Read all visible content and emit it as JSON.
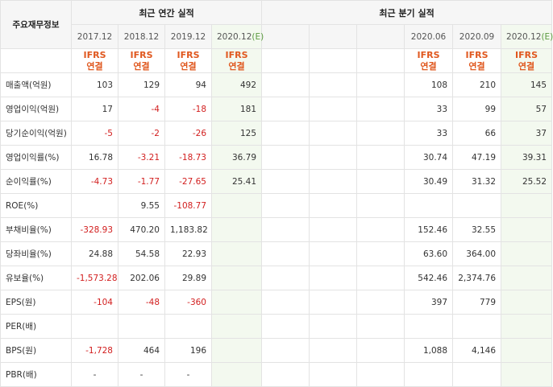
{
  "header": {
    "row_label": "주요재무정보",
    "annual_title": "최근 연간 실적",
    "quarter_title": "최근 분기 실적"
  },
  "annual_periods": [
    "2017.12",
    "2018.12",
    "2019.12",
    "2020.12(E)"
  ],
  "quarter_periods": [
    "",
    "",
    "",
    "2020.06",
    "2020.09",
    "2020.12(E)"
  ],
  "ifrs_label": "IFRS",
  "ifrs_sub": "연결",
  "rows": [
    {
      "label": "매출액(억원)",
      "annual": [
        "103",
        "129",
        "94",
        "492"
      ],
      "quarter": [
        "",
        "",
        "",
        "108",
        "210",
        "145"
      ]
    },
    {
      "label": "영업이익(억원)",
      "annual": [
        "17",
        "-4",
        "-18",
        "181"
      ],
      "quarter": [
        "",
        "",
        "",
        "33",
        "99",
        "57"
      ]
    },
    {
      "label": "당기순이익(억원)",
      "annual": [
        "-5",
        "-2",
        "-26",
        "125"
      ],
      "quarter": [
        "",
        "",
        "",
        "33",
        "66",
        "37"
      ]
    },
    {
      "label": "영업이익률(%)",
      "annual": [
        "16.78",
        "-3.21",
        "-18.73",
        "36.79"
      ],
      "quarter": [
        "",
        "",
        "",
        "30.74",
        "47.19",
        "39.31"
      ]
    },
    {
      "label": "순이익률(%)",
      "annual": [
        "-4.73",
        "-1.77",
        "-27.65",
        "25.41"
      ],
      "quarter": [
        "",
        "",
        "",
        "30.49",
        "31.32",
        "25.52"
      ]
    },
    {
      "label": "ROE(%)",
      "annual": [
        "",
        "9.55",
        "-108.77",
        ""
      ],
      "quarter": [
        "",
        "",
        "",
        "",
        "",
        ""
      ]
    },
    {
      "label": "부채비율(%)",
      "annual": [
        "-328.93",
        "470.20",
        "1,183.82",
        ""
      ],
      "quarter": [
        "",
        "",
        "",
        "152.46",
        "32.55",
        ""
      ]
    },
    {
      "label": "당좌비율(%)",
      "annual": [
        "24.88",
        "54.58",
        "22.93",
        ""
      ],
      "quarter": [
        "",
        "",
        "",
        "63.60",
        "364.00",
        ""
      ]
    },
    {
      "label": "유보율(%)",
      "annual": [
        "-1,573.28",
        "202.06",
        "29.89",
        ""
      ],
      "quarter": [
        "",
        "",
        "",
        "542.46",
        "2,374.76",
        ""
      ]
    },
    {
      "label": "EPS(원)",
      "annual": [
        "-104",
        "-48",
        "-360",
        ""
      ],
      "quarter": [
        "",
        "",
        "",
        "397",
        "779",
        ""
      ]
    },
    {
      "label": "PER(배)",
      "annual": [
        "",
        "",
        "",
        ""
      ],
      "quarter": [
        "",
        "",
        "",
        "",
        "",
        ""
      ]
    },
    {
      "label": "BPS(원)",
      "annual": [
        "-1,728",
        "464",
        "196",
        ""
      ],
      "quarter": [
        "",
        "",
        "",
        "1,088",
        "4,146",
        ""
      ]
    },
    {
      "label": "PBR(배)",
      "annual": [
        "-",
        "-",
        "-",
        ""
      ],
      "quarter": [
        "",
        "",
        "",
        "",
        "",
        ""
      ]
    }
  ],
  "colors": {
    "negative": "#d21e1e",
    "ifrs": "#e0581f",
    "estimate_bg": "#f3f9ef",
    "header_bg": "#f6f6f6"
  }
}
